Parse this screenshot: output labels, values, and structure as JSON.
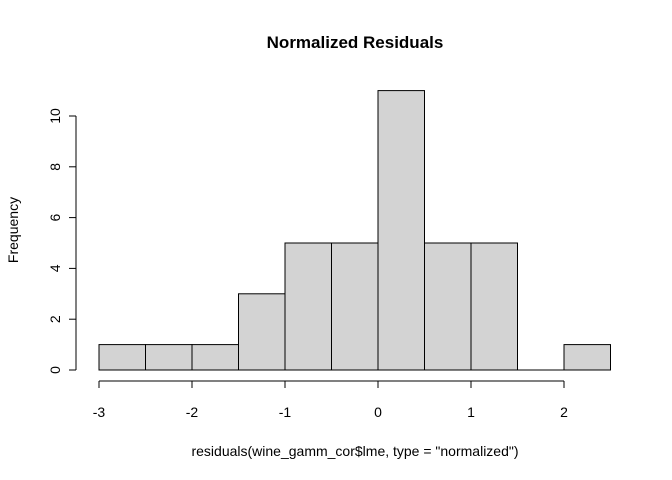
{
  "chart_data": {
    "type": "bar",
    "title": "Normalized Residuals",
    "xlabel": "residuals(wine_gamm_cor$lme, type = \"normalized\")",
    "ylabel": "Frequency",
    "bins": [
      {
        "x0": -3.0,
        "x1": -2.5,
        "count": 1
      },
      {
        "x0": -2.5,
        "x1": -2.0,
        "count": 1
      },
      {
        "x0": -2.0,
        "x1": -1.5,
        "count": 1
      },
      {
        "x0": -1.5,
        "x1": -1.0,
        "count": 3
      },
      {
        "x0": -1.0,
        "x1": -0.5,
        "count": 5
      },
      {
        "x0": -0.5,
        "x1": 0.0,
        "count": 5
      },
      {
        "x0": 0.0,
        "x1": 0.5,
        "count": 11
      },
      {
        "x0": 0.5,
        "x1": 1.0,
        "count": 5
      },
      {
        "x0": 1.0,
        "x1": 1.5,
        "count": 5
      },
      {
        "x0": 1.5,
        "x1": 2.0,
        "count": 0
      },
      {
        "x0": 2.0,
        "x1": 2.5,
        "count": 1
      }
    ],
    "xticks": [
      -3,
      -2,
      -1,
      0,
      1,
      2
    ],
    "yticks": [
      0,
      2,
      4,
      6,
      8,
      10
    ],
    "xlim": [
      -3,
      2.5
    ],
    "ylim": [
      0,
      11
    ],
    "colors": {
      "bar_fill": "#d3d3d3",
      "bar_stroke": "#000000"
    },
    "grid": false
  }
}
